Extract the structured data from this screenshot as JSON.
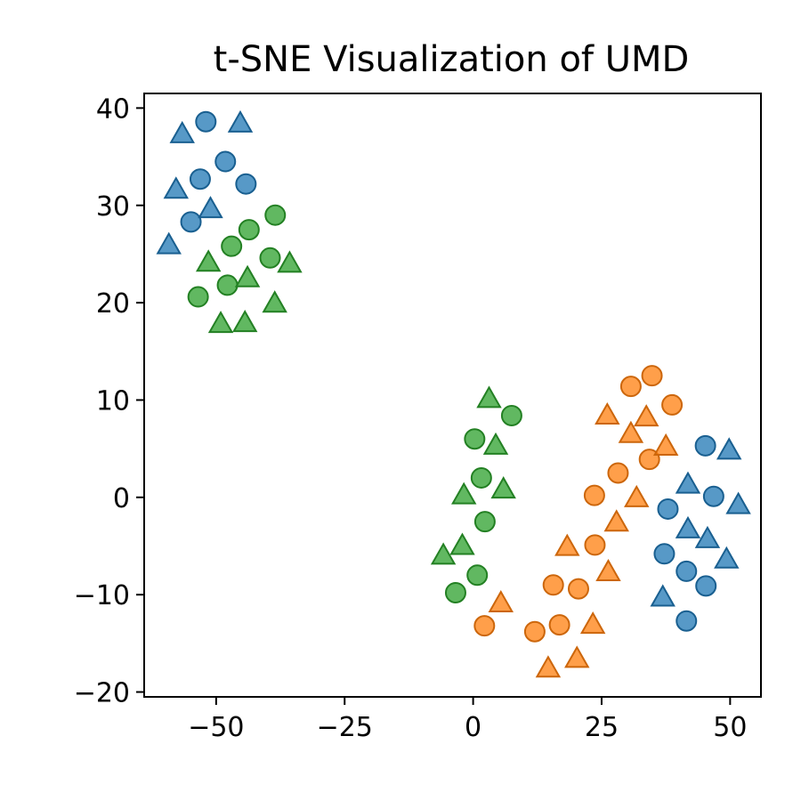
{
  "chart_data": {
    "type": "scatter",
    "title": "t-SNE Visualization of UMD",
    "xlabel": "",
    "ylabel": "",
    "xlim": [
      -64,
      56
    ],
    "ylim": [
      -20.5,
      41.5
    ],
    "x_ticks": [
      {
        "value": -50,
        "label": "−50"
      },
      {
        "value": -25,
        "label": "−25"
      },
      {
        "value": 0,
        "label": "0"
      },
      {
        "value": 25,
        "label": "25"
      },
      {
        "value": 50,
        "label": "50"
      }
    ],
    "y_ticks": [
      {
        "value": -20,
        "label": "−20"
      },
      {
        "value": -10,
        "label": "−10"
      },
      {
        "value": 0,
        "label": "0"
      },
      {
        "value": 10,
        "label": "10"
      },
      {
        "value": 20,
        "label": "20"
      },
      {
        "value": 30,
        "label": "30"
      },
      {
        "value": 40,
        "label": "40"
      }
    ],
    "grid": false,
    "legend": "none",
    "series": [
      {
        "color": "#1f77b4",
        "circles": [
          [
            -52,
            38.6
          ],
          [
            -48.2,
            34.5
          ],
          [
            -53.1,
            32.7
          ],
          [
            -44.2,
            32.2
          ],
          [
            -54.9,
            28.3
          ],
          [
            45.2,
            5.3
          ],
          [
            46.8,
            0.1
          ],
          [
            37.9,
            -1.2
          ],
          [
            37.2,
            -5.8
          ],
          [
            41.5,
            -7.6
          ],
          [
            45.3,
            -9.1
          ],
          [
            41.5,
            -12.7
          ]
        ],
        "triangles": [
          [
            -56.6,
            37.3
          ],
          [
            -45.3,
            38.4
          ],
          [
            -57.8,
            31.6
          ],
          [
            -51.1,
            29.6
          ],
          [
            -59.2,
            25.9
          ],
          [
            49.8,
            4.8
          ],
          [
            41.8,
            1.3
          ],
          [
            51.6,
            -0.8
          ],
          [
            41.8,
            -3.3
          ],
          [
            45.6,
            -4.3
          ],
          [
            49.3,
            -6.4
          ],
          [
            36.9,
            -10.3
          ]
        ]
      },
      {
        "color": "#ff7f0e",
        "circles": [
          [
            30.7,
            11.4
          ],
          [
            34.8,
            12.5
          ],
          [
            38.7,
            9.5
          ],
          [
            34.3,
            3.9
          ],
          [
            28.2,
            2.5
          ],
          [
            23.6,
            0.2
          ],
          [
            23.7,
            -4.9
          ],
          [
            15.6,
            -9
          ],
          [
            20.5,
            -9.4
          ],
          [
            2.2,
            -13.2
          ],
          [
            12,
            -13.8
          ],
          [
            16.8,
            -13.1
          ]
        ],
        "triangles": [
          [
            26.1,
            8.4
          ],
          [
            33.7,
            8.2
          ],
          [
            30.7,
            6.5
          ],
          [
            37.5,
            5.2
          ],
          [
            31.8,
            -0.1
          ],
          [
            27.9,
            -2.6
          ],
          [
            18.3,
            -5.1
          ],
          [
            26.3,
            -7.7
          ],
          [
            5.4,
            -10.9
          ],
          [
            23.3,
            -13.1
          ],
          [
            20.2,
            -16.6
          ],
          [
            14.6,
            -17.6
          ]
        ]
      },
      {
        "color": "#2ca02c",
        "circles": [
          [
            -38.5,
            29
          ],
          [
            -43.6,
            27.5
          ],
          [
            -47,
            25.8
          ],
          [
            -39.5,
            24.6
          ],
          [
            -47.8,
            21.8
          ],
          [
            -53.5,
            20.6
          ],
          [
            7.5,
            8.4
          ],
          [
            0.3,
            6
          ],
          [
            1.6,
            2
          ],
          [
            2.3,
            -2.5
          ],
          [
            0.8,
            -8
          ],
          [
            -3.4,
            -9.8
          ]
        ],
        "triangles": [
          [
            -51.5,
            24.1
          ],
          [
            -35.7,
            24
          ],
          [
            -43.9,
            22.5
          ],
          [
            -38.6,
            19.9
          ],
          [
            -49.1,
            17.8
          ],
          [
            -44.4,
            17.9
          ],
          [
            3.1,
            10.1
          ],
          [
            4.4,
            5.3
          ],
          [
            -1.8,
            0.2
          ],
          [
            5.9,
            0.8
          ],
          [
            -2.1,
            -5
          ],
          [
            -5.8,
            -6
          ]
        ]
      }
    ]
  }
}
